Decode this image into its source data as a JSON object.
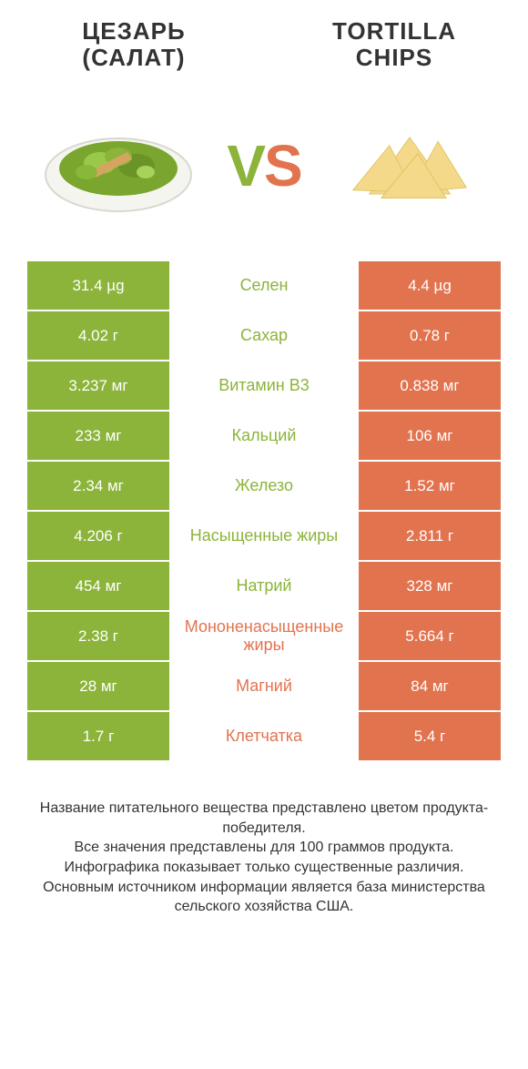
{
  "colors": {
    "green": "#8cb43a",
    "orange": "#e2734f",
    "text_green": "#8cb43a",
    "text_orange": "#e2734f"
  },
  "titles": {
    "left_line1": "ЦЕЗАРЬ",
    "left_line2": "(САЛАТ)",
    "right_line1": "TORTILLA",
    "right_line2": "CHIPS"
  },
  "vs": {
    "v": "V",
    "s": "S"
  },
  "rows": [
    {
      "left": "31.4 µg",
      "center": "Селен",
      "right": "4.4 µg",
      "winner": "left"
    },
    {
      "left": "4.02 г",
      "center": "Сахар",
      "right": "0.78 г",
      "winner": "left"
    },
    {
      "left": "3.237 мг",
      "center": "Витамин B3",
      "right": "0.838 мг",
      "winner": "left"
    },
    {
      "left": "233 мг",
      "center": "Кальций",
      "right": "106 мг",
      "winner": "left"
    },
    {
      "left": "2.34 мг",
      "center": "Железо",
      "right": "1.52 мг",
      "winner": "left"
    },
    {
      "left": "4.206 г",
      "center": "Насыщенные жиры",
      "right": "2.811 г",
      "winner": "left"
    },
    {
      "left": "454 мг",
      "center": "Натрий",
      "right": "328 мг",
      "winner": "left"
    },
    {
      "left": "2.38 г",
      "center": "Мононенасыщенные жиры",
      "right": "5.664 г",
      "winner": "right"
    },
    {
      "left": "28 мг",
      "center": "Магний",
      "right": "84 мг",
      "winner": "right"
    },
    {
      "left": "1.7 г",
      "center": "Клетчатка",
      "right": "5.4 г",
      "winner": "right"
    }
  ],
  "footer": {
    "line1": "Название питательного вещества представлено цветом продукта-победителя.",
    "line2": "Все значения представлены для 100 граммов продукта.",
    "line3": "Инфографика показывает только существенные различия.",
    "line4": "Основным источником информации является база министерства сельского хозяйства США."
  }
}
